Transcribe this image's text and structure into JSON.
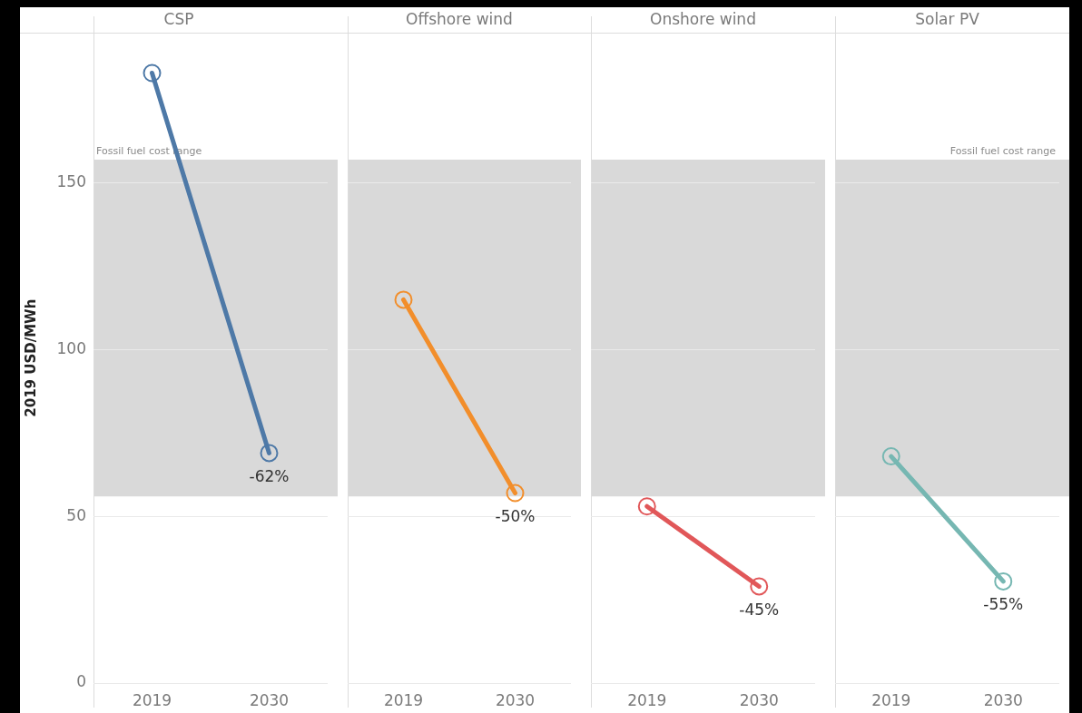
{
  "chart_data": [
    {
      "type": "line",
      "title": "CSP",
      "ylabel": "2019 USD/MWh",
      "categories": [
        "2019",
        "2030"
      ],
      "series": [
        {
          "color": "#4e79a7",
          "values": [
            183,
            69
          ]
        }
      ],
      "ylim": [
        0,
        195
      ],
      "yticks": [
        0,
        50,
        100,
        150
      ],
      "grid": "y",
      "marker": "circle",
      "bands": [
        {
          "axis": "y",
          "from": 56,
          "to": 157,
          "label": "Fossil fuel cost range",
          "color": "#d9d9d9"
        }
      ],
      "annotations": [
        {
          "text": "-62%",
          "x": "2030",
          "y": 69
        }
      ]
    },
    {
      "type": "line",
      "title": "Offshore wind",
      "categories": [
        "2019",
        "2030"
      ],
      "series": [
        {
          "color": "#f28e2b",
          "values": [
            115,
            57
          ]
        }
      ],
      "ylim": [
        0,
        195
      ],
      "yticks": [
        0,
        50,
        100,
        150
      ],
      "grid": "y",
      "marker": "circle",
      "tick_labels": "x",
      "bands": [
        {
          "axis": "y",
          "from": 56,
          "to": 157,
          "color": "#d9d9d9"
        }
      ],
      "annotations": [
        {
          "text": "-50%",
          "x": "2030",
          "y": 57
        }
      ]
    },
    {
      "type": "line",
      "title": "Onshore wind",
      "categories": [
        "2019",
        "2030"
      ],
      "series": [
        {
          "color": "#e15759",
          "values": [
            53,
            29
          ]
        }
      ],
      "ylim": [
        0,
        195
      ],
      "yticks": [
        0,
        50,
        100,
        150
      ],
      "grid": "y",
      "marker": "circle",
      "tick_labels": "x",
      "bands": [
        {
          "axis": "y",
          "from": 56,
          "to": 157,
          "color": "#d9d9d9"
        }
      ],
      "annotations": [
        {
          "text": "-45%",
          "x": "2030",
          "y": 29
        }
      ]
    },
    {
      "type": "line",
      "title": "Solar PV",
      "categories": [
        "2019",
        "2030"
      ],
      "series": [
        {
          "color": "#76b7b2",
          "values": [
            68,
            30.5
          ]
        }
      ],
      "ylim": [
        0,
        195
      ],
      "yticks": [
        0,
        50,
        100,
        150
      ],
      "grid": "y",
      "marker": "circle",
      "tick_labels": "x",
      "bands": [
        {
          "axis": "y",
          "from": 56,
          "to": 157,
          "label": "Fossil fuel cost range",
          "color": "#d9d9d9"
        }
      ],
      "annotations": [
        {
          "text": "-55%",
          "x": "2030",
          "y": 30.5
        }
      ]
    }
  ]
}
